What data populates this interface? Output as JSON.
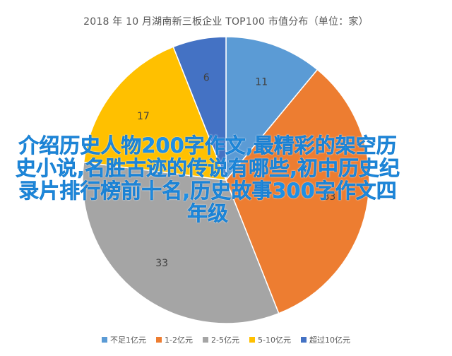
{
  "chart_data": {
    "type": "pie",
    "title": "2018 年 10 月湖南新三板企业 TOP100 市值分布（单位：家）",
    "categories": [
      "不足1亿元",
      "1-2亿元",
      "2-5亿元",
      "5-10亿元",
      "超过10亿元"
    ],
    "values": [
      11,
      33,
      33,
      17,
      6
    ],
    "colors": [
      "#5b9bd5",
      "#ed7d31",
      "#a5a5a5",
      "#ffc000",
      "#4472c4"
    ],
    "legend_position": "bottom"
  },
  "overlay_text": "介绍历史人物200字作文,最精彩的架空历史小说,名胜古迹的传说有哪些,初中历史纪录片排行榜前十名,历史故事300字作文四年级"
}
